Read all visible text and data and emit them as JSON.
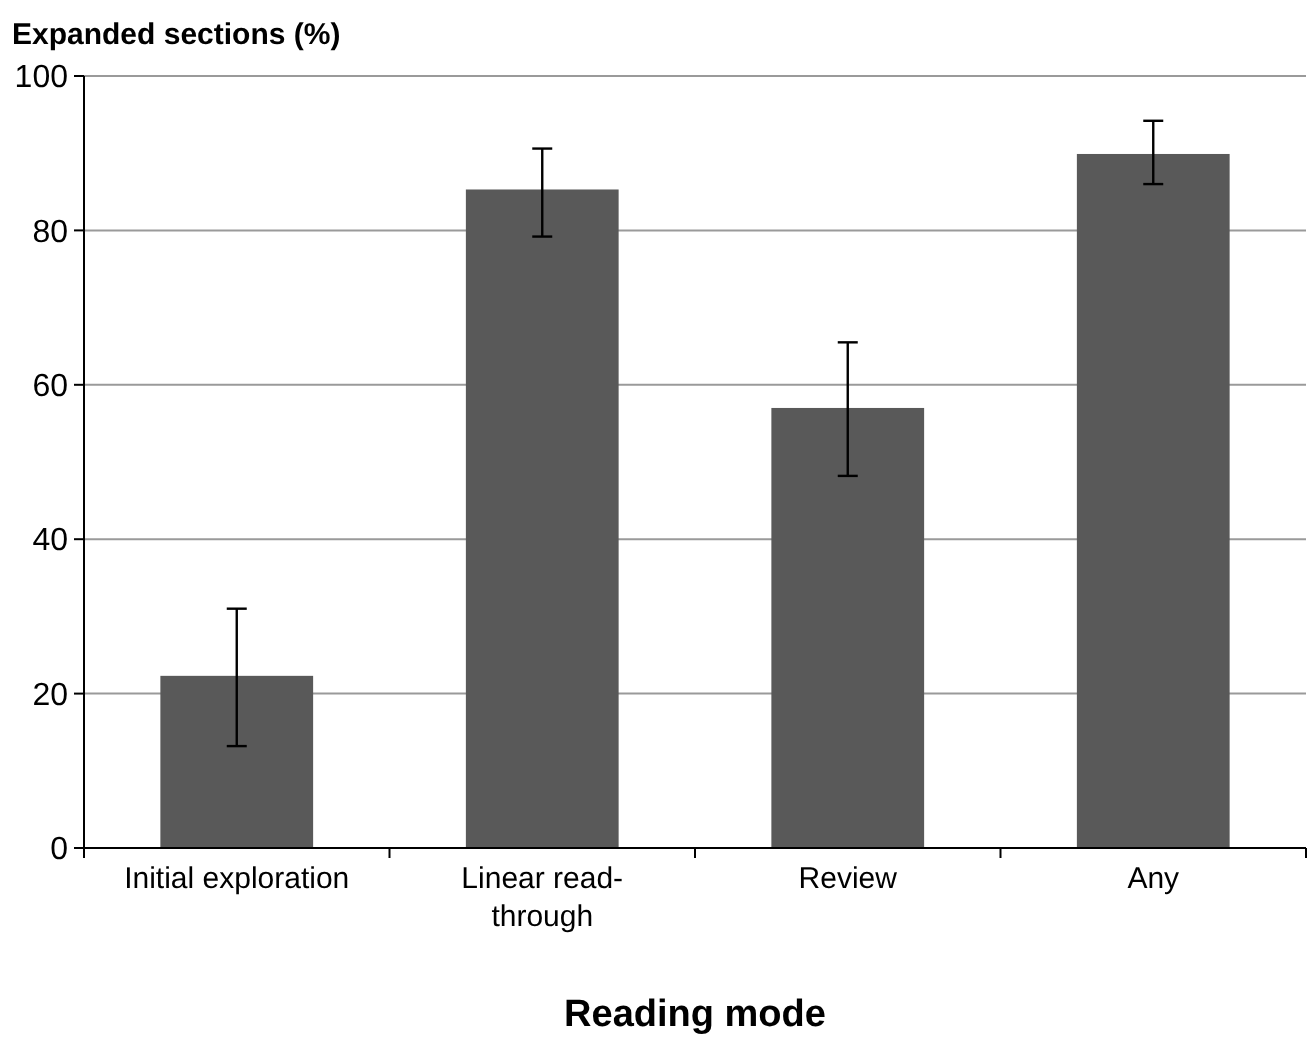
{
  "chart_data": {
    "type": "bar",
    "ylabel": "Expanded sections (%)",
    "xlabel": "Reading mode",
    "categories": [
      "Initial exploration",
      "Linear read-through",
      "Review",
      "Any"
    ],
    "values": [
      22.3,
      85.3,
      57,
      89.9
    ],
    "errors": [
      [
        13.2,
        31
      ],
      [
        79.2,
        90.6
      ],
      [
        48.2,
        65.5
      ],
      [
        86,
        94.2
      ]
    ],
    "color": "#595959",
    "ylim": [
      0,
      100
    ],
    "yticks": [
      0,
      20,
      40,
      60,
      80,
      100
    ],
    "grid": "y"
  }
}
